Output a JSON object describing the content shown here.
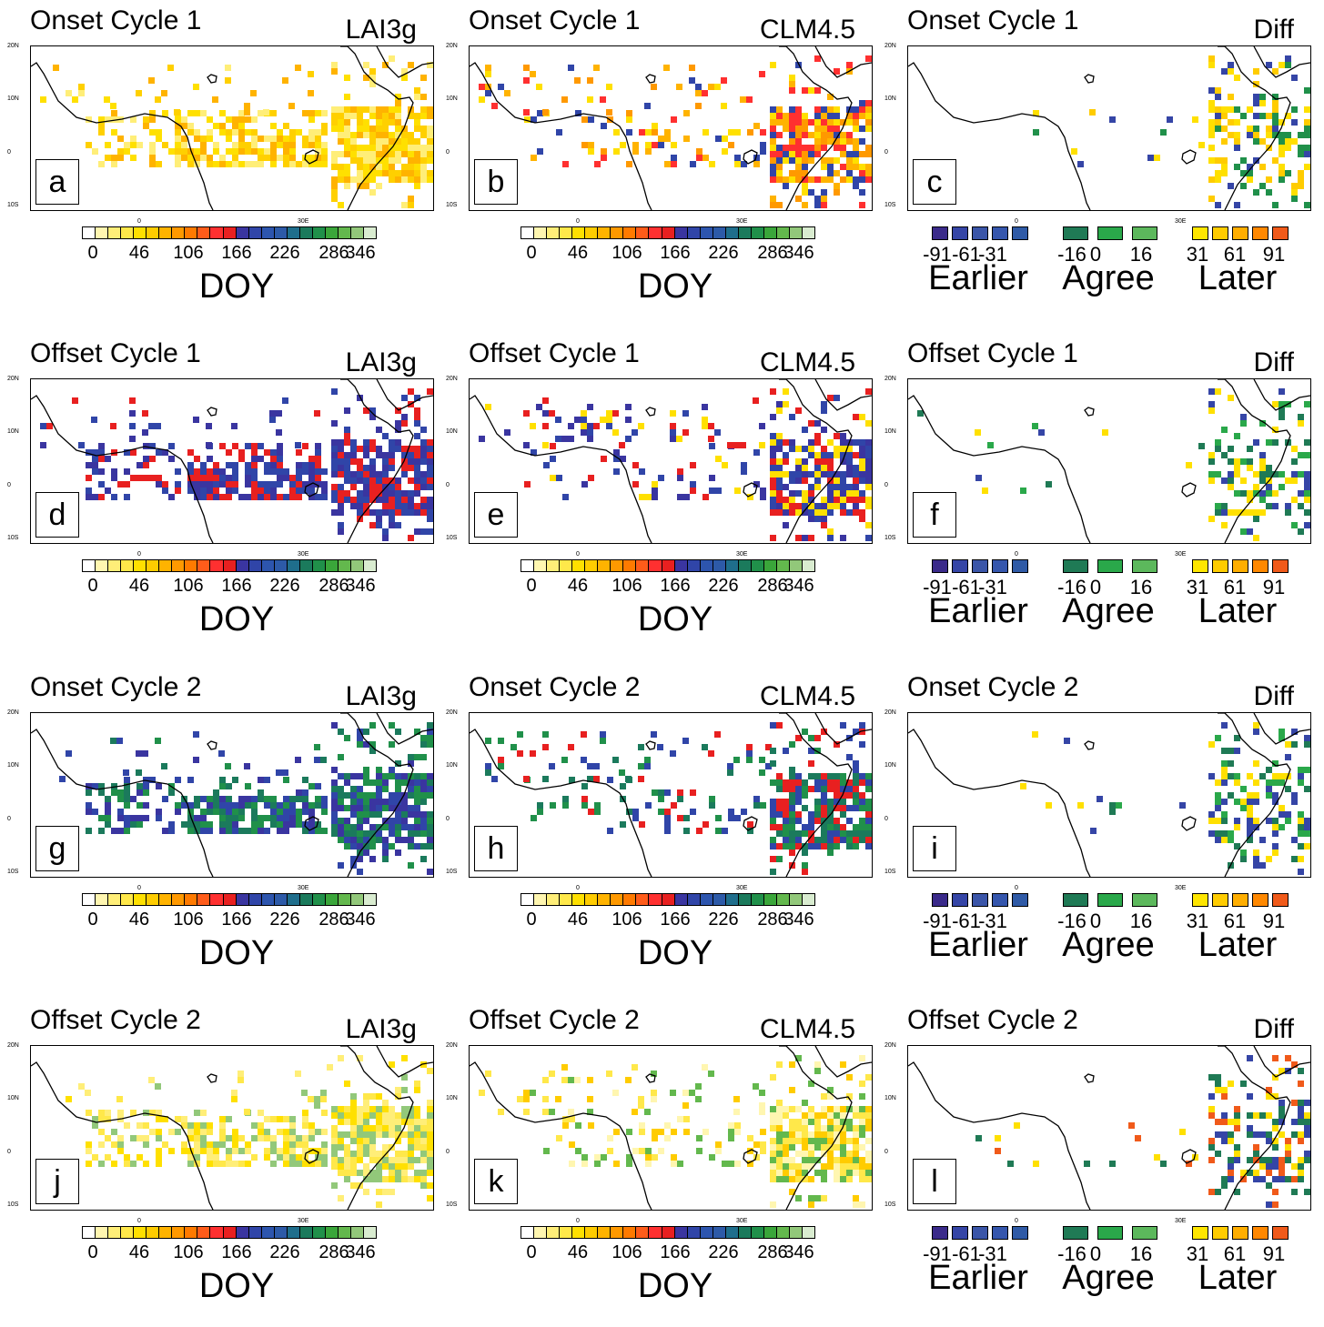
{
  "colorbar": {
    "colors": [
      "#ffffff",
      "#fff6b0",
      "#ffee78",
      "#ffe84a",
      "#ffe000",
      "#ffcc00",
      "#ffb300",
      "#ff9900",
      "#ff7a00",
      "#ff5c1a",
      "#ff3030",
      "#e82020",
      "#3a35a0",
      "#3045a8",
      "#2d55ae",
      "#2d5aa8",
      "#1f6e8c",
      "#1b7a5c",
      "#20904a",
      "#3aa63a",
      "#63b84d",
      "#92c87a",
      "#d9ecd0"
    ],
    "tick_labels": [
      "0",
      "46",
      "106",
      "166",
      "226",
      "286",
      "346"
    ],
    "axis_label": "DOY"
  },
  "diff_legend": {
    "earlier": {
      "values": [
        "-91",
        "-61",
        "-31"
      ],
      "label": "Earlier",
      "colors": [
        "#3a2a8a",
        "#3545a6",
        "#3a55a8",
        "#3556ad",
        "#2f5aa6"
      ]
    },
    "agree": {
      "values": [
        "-16",
        "0",
        "16"
      ],
      "label": "Agree",
      "colors": [
        "#1f7a55",
        "#2aa84a",
        "#5cb85c"
      ]
    },
    "later": {
      "values": [
        "31",
        "61",
        "91"
      ],
      "label": "Later",
      "colors": [
        "#ffe600",
        "#ffcc00",
        "#ffae00",
        "#ff8800",
        "#f05a1a"
      ]
    }
  },
  "map_ticks": {
    "y": [
      "20N",
      "10N",
      "0",
      "10S"
    ],
    "x": [
      "0",
      "30E"
    ]
  },
  "rows": [
    {
      "title": "Onset Cycle 1",
      "panels": [
        {
          "source": "LAI3g",
          "letter": "a",
          "palette": [
            "#ffe000",
            "#ffd000",
            "#ffb300",
            "#ffee78"
          ]
        },
        {
          "source": "CLM4.5",
          "letter": "b",
          "palette": [
            "#ffb300",
            "#ff9900",
            "#ffe000",
            "#ff3030",
            "#3045a8"
          ]
        },
        {
          "source": "Diff",
          "letter": "c",
          "palette": [
            "#ffe000",
            "#20904a",
            "#3545a6",
            "#ffcc00"
          ]
        }
      ]
    },
    {
      "title": "Offset Cycle 1",
      "panels": [
        {
          "source": "LAI3g",
          "letter": "d",
          "palette": [
            "#e82020",
            "#3a35a0",
            "#3045a8"
          ]
        },
        {
          "source": "CLM4.5",
          "letter": "e",
          "palette": [
            "#3045a8",
            "#e82020",
            "#3a35a0",
            "#ffe000"
          ]
        },
        {
          "source": "Diff",
          "letter": "f",
          "palette": [
            "#1f7a55",
            "#2aa84a",
            "#ffe000",
            "#3545a6"
          ]
        }
      ]
    },
    {
      "title": "Onset Cycle 2",
      "panels": [
        {
          "source": "LAI3g",
          "letter": "g",
          "palette": [
            "#3045a8",
            "#3a35a0",
            "#1b7a5c",
            "#20904a"
          ]
        },
        {
          "source": "CLM4.5",
          "letter": "h",
          "palette": [
            "#20904a",
            "#1b7a5c",
            "#e82020",
            "#3045a8"
          ]
        },
        {
          "source": "Diff",
          "letter": "i",
          "palette": [
            "#2aa84a",
            "#1f7a55",
            "#ffe000",
            "#3545a6"
          ]
        }
      ]
    },
    {
      "title": "Offset Cycle 2",
      "panels": [
        {
          "source": "LAI3g",
          "letter": "j",
          "palette": [
            "#ffe84a",
            "#ffee78",
            "#92c87a",
            "#ffe000"
          ]
        },
        {
          "source": "CLM4.5",
          "letter": "k",
          "palette": [
            "#fff6b0",
            "#ffe84a",
            "#ffcc00",
            "#63b84d"
          ]
        },
        {
          "source": "Diff",
          "letter": "l",
          "palette": [
            "#3545a6",
            "#1f7a55",
            "#f05a1a",
            "#ffe000"
          ]
        }
      ]
    }
  ]
}
